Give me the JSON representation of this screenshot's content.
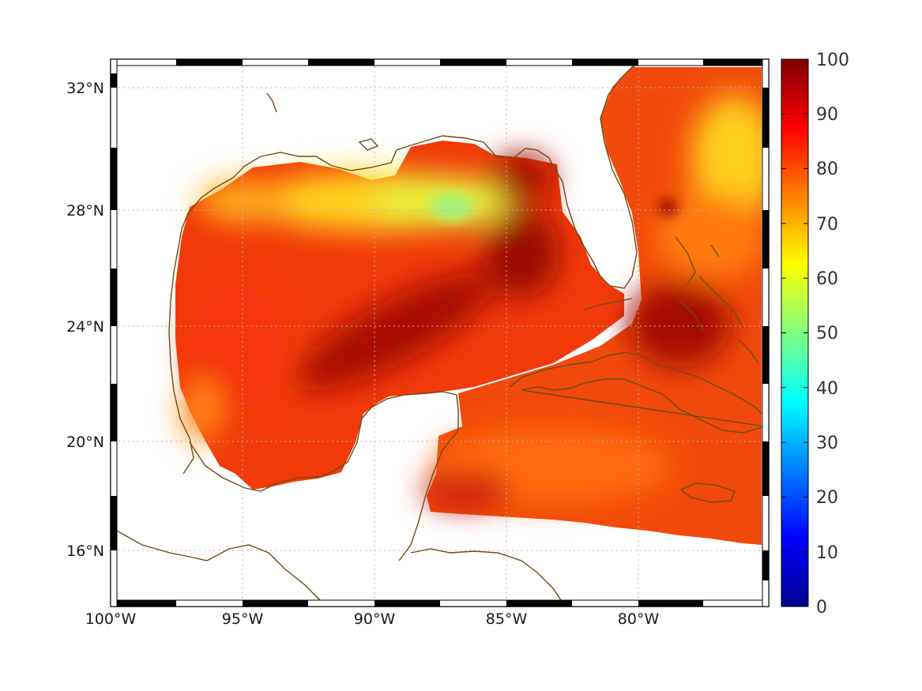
{
  "map": {
    "lon_range": [
      -100,
      -75
    ],
    "lat_range": [
      14.2,
      33
    ],
    "lon_ticks": [
      {
        "value": -100,
        "label": "100°W"
      },
      {
        "value": -95,
        "label": "95°W"
      },
      {
        "value": -90,
        "label": "90°W"
      },
      {
        "value": -85,
        "label": "85°W"
      },
      {
        "value": -80,
        "label": "80°W"
      }
    ],
    "lat_ticks": [
      {
        "value": 16,
        "label": "16°N"
      },
      {
        "value": 20,
        "label": "20°N"
      },
      {
        "value": 24,
        "label": "24°N"
      },
      {
        "value": 28,
        "label": "28°N"
      },
      {
        "value": 32,
        "label": "32°N"
      }
    ],
    "grid": "dotted",
    "frame": "alternating black/white",
    "coastline_color": "#6b4f12",
    "land_color": "#ffffff"
  },
  "colorbar": {
    "colormap": "jet",
    "range": [
      0,
      100
    ],
    "ticks": [
      "0",
      "10",
      "20",
      "30",
      "40",
      "50",
      "60",
      "70",
      "80",
      "90",
      "100"
    ]
  },
  "chart_data": {
    "type": "heatmap",
    "field_range": [
      0,
      100
    ],
    "value_ranges": [
      {
        "region": "open Gulf of Mexico",
        "value": 85
      },
      {
        "region": "northern Gulf shelf",
        "value": 67
      },
      {
        "region": "off Mississippi delta",
        "value": 58
      },
      {
        "region": "central Gulf band",
        "value": 95
      },
      {
        "region": "northeast Gulf near Florida Panhandle",
        "value": 96
      },
      {
        "region": "Caribbean south of Cuba",
        "value": 80
      },
      {
        "region": "Atlantic east of Florida",
        "value": 75
      },
      {
        "region": "around Bahamas",
        "value": 93
      }
    ]
  }
}
